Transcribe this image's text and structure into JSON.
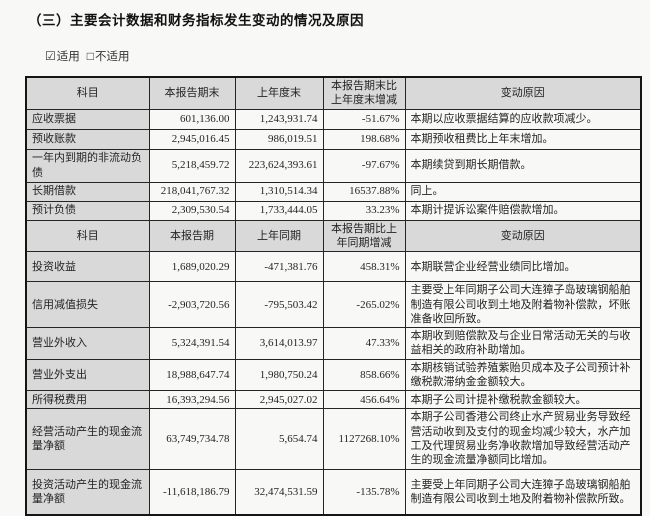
{
  "document": {
    "section_title": "（三）主要会计数据和财务指标发生变动的情况及原因",
    "applicability": {
      "applicable_checkbox": "☑",
      "applicable_label": "适用",
      "not_applicable_checkbox": "□",
      "not_applicable_label": "不适用"
    }
  },
  "balance_table": {
    "headers": [
      "科目",
      "本报告期末",
      "上年度末",
      "本报告期末比上年度末增减",
      "变动原因"
    ],
    "rows": [
      {
        "item": "应收票据",
        "current": "601,136.00",
        "prior": "1,243,931.74",
        "change": "-51.67%",
        "reason": "本期以应收票据结算的应收款项减少。"
      },
      {
        "item": "预收账款",
        "current": "2,945,016.45",
        "prior": "986,019.51",
        "change": "198.68%",
        "reason": "本期预收租费比上年末增加。"
      },
      {
        "item": "一年内到期的非流动负债",
        "current": "5,218,459.72",
        "prior": "223,624,393.61",
        "change": "-97.67%",
        "reason": "本期续贷到期长期借款。"
      },
      {
        "item": "长期借款",
        "current": "218,041,767.32",
        "prior": "1,310,514.34",
        "change": "16537.88%",
        "reason": "同上。"
      },
      {
        "item": "预计负债",
        "current": "2,309,530.54",
        "prior": "1,733,444.05",
        "change": "33.23%",
        "reason": "本期计提诉讼案件赔偿款增加。"
      }
    ]
  },
  "income_table": {
    "headers": [
      "科目",
      "本报告期",
      "上年同期",
      "本报告期比上年同期增减",
      "变动原因"
    ],
    "rows": [
      {
        "item": "投资收益",
        "current": "1,689,020.29",
        "prior": "-471,381.76",
        "change": "458.31%",
        "reason": "本期联营企业经营业绩同比增加。"
      },
      {
        "item": "信用减值损失",
        "current": "-2,903,720.56",
        "prior": "-795,503.42",
        "change": "-265.02%",
        "reason": "主要受上年同期子公司大连獐子岛玻璃钢船舶制造有限公司收到土地及附着物补偿款，坏账准备收回所致。"
      },
      {
        "item": "营业外收入",
        "current": "5,324,391.54",
        "prior": "3,614,013.97",
        "change": "47.33%",
        "reason": "本期收到赔偿款及与企业日常活动无关的与收益相关的政府补助增加。"
      },
      {
        "item": "营业外支出",
        "current": "18,988,647.74",
        "prior": "1,980,750.24",
        "change": "858.66%",
        "reason": "本期核销试验养殖紫贻贝成本及子公司预计补缴税款滞纳金金额较大。"
      },
      {
        "item": "所得税费用",
        "current": "16,393,294.56",
        "prior": "2,945,027.02",
        "change": "456.64%",
        "reason": "本期子公司计提补缴税款金额较大。"
      },
      {
        "item": "经营活动产生的现金流量净额",
        "current": "63,749,734.78",
        "prior": "5,654.74",
        "change": "1127268.10%",
        "reason": "本期子公司香港公司终止水产贸易业务导致经营活动收到及支付的现金均减少较大，水产加工及代理贸易业务净收款增加导致经营活动产生的现金流量净额同比增加。"
      },
      {
        "item": "投资活动产生的现金流量净额",
        "current": "-11,618,186.79",
        "prior": "32,474,531.59",
        "change": "-135.78%",
        "reason": "主要受上年同期子公司大连獐子岛玻璃钢船舶制造有限公司收到土地及附着物补偿款所致。"
      }
    ]
  }
}
